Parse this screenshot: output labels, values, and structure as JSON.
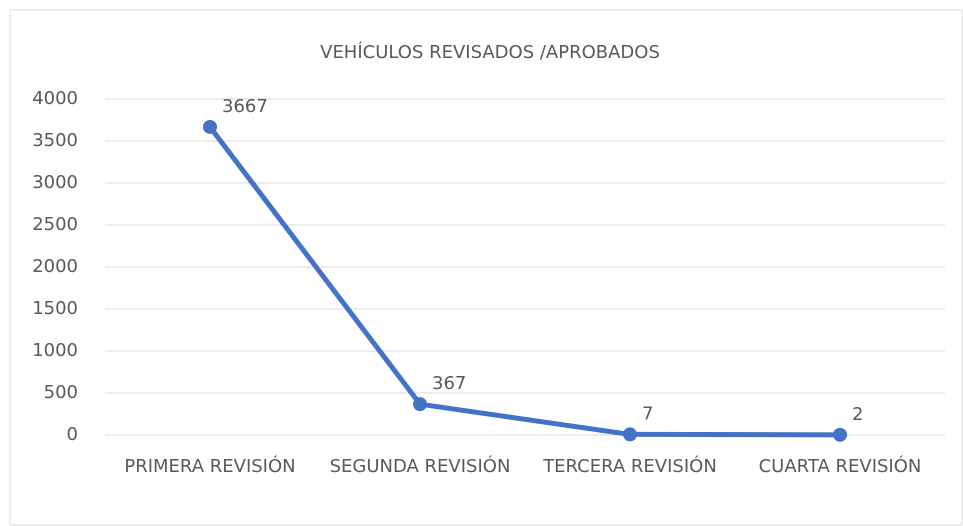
{
  "chart_data": {
    "type": "line",
    "title": "VEHÍCULOS REVISADOS /APROBADOS",
    "categories": [
      "PRIMERA REVISIÓN",
      "SEGUNDA REVISIÓN",
      "TERCERA REVISIÓN",
      "CUARTA REVISIÓN"
    ],
    "values": [
      3667,
      367,
      7,
      2
    ],
    "color": "#4472c4",
    "ylim": [
      0,
      4000
    ],
    "yticks": [
      0,
      500,
      1000,
      1500,
      2000,
      2500,
      3000,
      3500,
      4000
    ],
    "grid": true
  }
}
